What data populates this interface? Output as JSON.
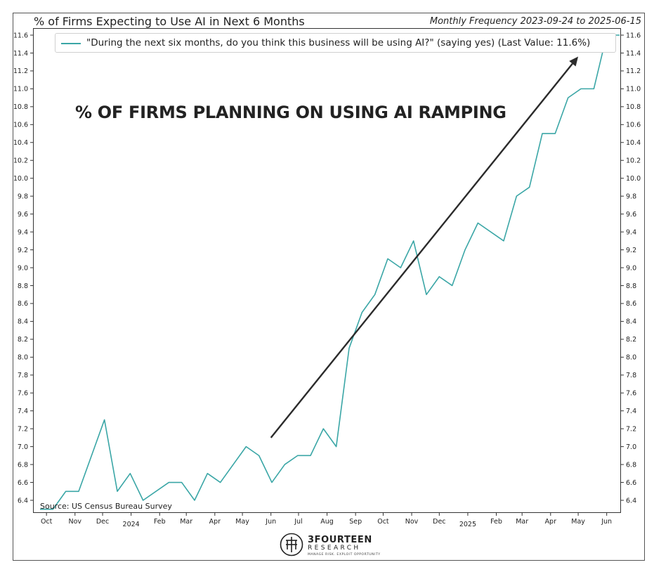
{
  "header": {
    "title": "% of Firms Expecting to Use AI in Next 6 Months",
    "frequency": "Monthly Frequency 2023-09-24 to 2025-06-15"
  },
  "legend": {
    "label": "\"During the next six months, do you think this business will be using AI?\" (saying yes) (Last Value: 11.6%)"
  },
  "annotation": {
    "text": "% OF FIRMS PLANNING ON USING AI RAMPING"
  },
  "source": "Source: US Census Bureau Survey",
  "logo": {
    "name": "3FOURTEEN",
    "sub": "RESEARCH",
    "tagline": "MANAGE RISK. EXPLOIT OPPORTUNITY"
  },
  "colors": {
    "series": "#3aa6a6",
    "arrow": "#2b2b2b",
    "axis": "#333333"
  },
  "chart_data": {
    "type": "line",
    "title": "% of Firms Expecting to Use AI in Next 6 Months",
    "ylim": [
      6.3,
      11.65
    ],
    "yticks": [
      6.4,
      6.6,
      6.8,
      7.0,
      7.2,
      7.4,
      7.6,
      7.8,
      8.0,
      8.2,
      8.4,
      8.6,
      8.8,
      9.0,
      9.2,
      9.4,
      9.6,
      9.8,
      10.0,
      10.2,
      10.4,
      10.6,
      10.8,
      11.0,
      11.2,
      11.4,
      11.6
    ],
    "ytick_labels_both_sides": true,
    "xlim": [
      "2023-09-24",
      "2025-06-15"
    ],
    "xticks": [
      {
        "date": "2023-10-01",
        "label": "Oct"
      },
      {
        "date": "2023-11-01",
        "label": "Nov"
      },
      {
        "date": "2023-12-01",
        "label": "Dec"
      },
      {
        "date": "2024-01-01",
        "label": "2024"
      },
      {
        "date": "2024-02-01",
        "label": "Feb"
      },
      {
        "date": "2024-03-01",
        "label": "Mar"
      },
      {
        "date": "2024-04-01",
        "label": "Apr"
      },
      {
        "date": "2024-05-01",
        "label": "May"
      },
      {
        "date": "2024-06-01",
        "label": "Jun"
      },
      {
        "date": "2024-07-01",
        "label": "Jul"
      },
      {
        "date": "2024-08-01",
        "label": "Aug"
      },
      {
        "date": "2024-09-01",
        "label": "Sep"
      },
      {
        "date": "2024-10-01",
        "label": "Oct"
      },
      {
        "date": "2024-11-01",
        "label": "Nov"
      },
      {
        "date": "2024-12-01",
        "label": "Dec"
      },
      {
        "date": "2025-01-01",
        "label": "2025"
      },
      {
        "date": "2025-02-01",
        "label": "Feb"
      },
      {
        "date": "2025-03-01",
        "label": "Mar"
      },
      {
        "date": "2025-04-01",
        "label": "Apr"
      },
      {
        "date": "2025-05-01",
        "label": "May"
      },
      {
        "date": "2025-06-01",
        "label": "Jun"
      }
    ],
    "series": [
      {
        "name": "\"During the next six months, do you think this business will be using AI?\" (saying yes)",
        "points": [
          [
            "2023-09-24",
            6.3
          ],
          [
            "2023-10-08",
            6.3
          ],
          [
            "2023-10-22",
            6.5
          ],
          [
            "2023-11-05",
            6.5
          ],
          [
            "2023-12-03",
            7.3
          ],
          [
            "2023-12-17",
            6.5
          ],
          [
            "2023-12-31",
            6.7
          ],
          [
            "2024-01-14",
            6.4
          ],
          [
            "2024-02-11",
            6.6
          ],
          [
            "2024-02-25",
            6.6
          ],
          [
            "2024-03-10",
            6.4
          ],
          [
            "2024-03-24",
            6.7
          ],
          [
            "2024-04-07",
            6.6
          ],
          [
            "2024-05-05",
            7.0
          ],
          [
            "2024-05-19",
            6.9
          ],
          [
            "2024-06-02",
            6.6
          ],
          [
            "2024-06-16",
            6.8
          ],
          [
            "2024-06-30",
            6.9
          ],
          [
            "2024-07-14",
            6.9
          ],
          [
            "2024-07-28",
            7.2
          ],
          [
            "2024-08-11",
            7.0
          ],
          [
            "2024-08-25",
            8.1
          ],
          [
            "2024-09-08",
            8.5
          ],
          [
            "2024-09-22",
            8.7
          ],
          [
            "2024-10-06",
            9.1
          ],
          [
            "2024-10-20",
            9.0
          ],
          [
            "2024-11-03",
            9.3
          ],
          [
            "2024-11-17",
            8.7
          ],
          [
            "2024-12-01",
            8.9
          ],
          [
            "2024-12-15",
            8.8
          ],
          [
            "2024-12-29",
            9.2
          ],
          [
            "2025-01-12",
            9.5
          ],
          [
            "2025-02-09",
            9.3
          ],
          [
            "2025-02-23",
            9.8
          ],
          [
            "2025-03-09",
            9.9
          ],
          [
            "2025-03-23",
            10.5
          ],
          [
            "2025-04-06",
            10.5
          ],
          [
            "2025-04-20",
            10.9
          ],
          [
            "2025-05-04",
            11.0
          ],
          [
            "2025-05-18",
            11.0
          ],
          [
            "2025-06-01",
            11.6
          ],
          [
            "2025-06-15",
            11.6
          ]
        ]
      }
    ],
    "arrow": {
      "from": [
        "2024-06-01",
        7.1
      ],
      "to": [
        "2025-05-01",
        11.36
      ]
    },
    "grid": false,
    "legend_position": "top"
  }
}
